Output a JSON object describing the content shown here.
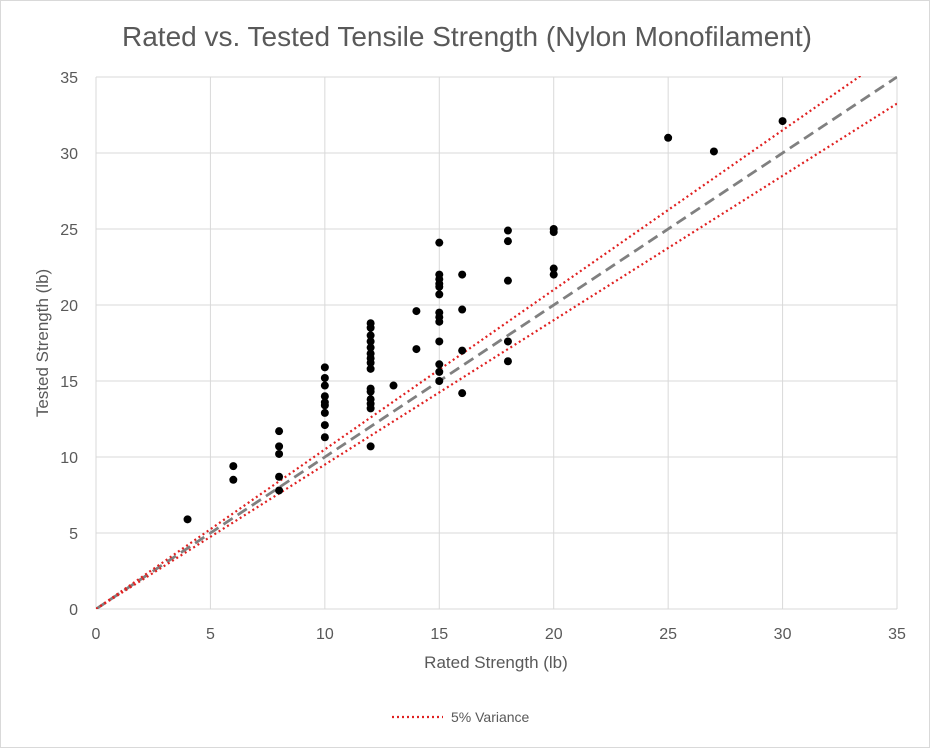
{
  "chart_data": {
    "type": "scatter",
    "title": "Rated vs. Tested Tensile Strength (Nylon Monofilament)",
    "xlabel": "Rated Strength (lb)",
    "ylabel": "Tested Strength (lb)",
    "xlim": [
      0,
      35
    ],
    "ylim": [
      0,
      35
    ],
    "x_ticks": [
      0,
      5,
      10,
      15,
      20,
      25,
      30,
      35
    ],
    "y_ticks": [
      0,
      5,
      10,
      15,
      20,
      25,
      30,
      35
    ],
    "grid": true,
    "legend_position": "bottom",
    "legend": [
      "5% Variance"
    ],
    "colors": {
      "points": "#000000",
      "reference_line": "#808080",
      "variance_lines": "#e02020",
      "grid": "#d9d9d9",
      "text": "#595959"
    },
    "series": [
      {
        "type": "scatter",
        "points": [
          [
            4,
            5.9
          ],
          [
            6,
            9.4
          ],
          [
            6,
            8.5
          ],
          [
            8,
            11.7
          ],
          [
            8,
            10.7
          ],
          [
            8,
            10.2
          ],
          [
            8,
            8.7
          ],
          [
            8,
            7.8
          ],
          [
            10,
            15.9
          ],
          [
            10,
            15.2
          ],
          [
            10,
            14.7
          ],
          [
            10,
            14.0
          ],
          [
            10,
            13.6
          ],
          [
            10,
            13.4
          ],
          [
            10,
            12.9
          ],
          [
            10,
            12.1
          ],
          [
            10,
            11.3
          ],
          [
            12,
            18.8
          ],
          [
            12,
            18.5
          ],
          [
            12,
            18.0
          ],
          [
            12,
            17.6
          ],
          [
            12,
            17.2
          ],
          [
            12,
            16.8
          ],
          [
            12,
            16.5
          ],
          [
            12,
            16.2
          ],
          [
            12,
            15.8
          ],
          [
            12,
            14.5
          ],
          [
            12,
            14.3
          ],
          [
            12,
            13.8
          ],
          [
            12,
            13.5
          ],
          [
            12,
            13.2
          ],
          [
            12,
            10.7
          ],
          [
            13,
            14.7
          ],
          [
            14,
            19.6
          ],
          [
            14,
            17.1
          ],
          [
            15,
            24.1
          ],
          [
            15,
            22.0
          ],
          [
            15,
            21.7
          ],
          [
            15,
            21.4
          ],
          [
            15,
            21.2
          ],
          [
            15,
            20.7
          ],
          [
            15,
            19.5
          ],
          [
            15,
            19.2
          ],
          [
            15,
            18.9
          ],
          [
            15,
            17.6
          ],
          [
            15,
            16.1
          ],
          [
            15,
            15.6
          ],
          [
            15,
            15.0
          ],
          [
            16,
            22.0
          ],
          [
            16,
            19.7
          ],
          [
            16,
            17.0
          ],
          [
            16,
            14.2
          ],
          [
            18,
            24.9
          ],
          [
            18,
            24.2
          ],
          [
            18,
            21.6
          ],
          [
            18,
            17.6
          ],
          [
            18,
            16.3
          ],
          [
            20,
            25.0
          ],
          [
            20,
            24.8
          ],
          [
            20,
            22.4
          ],
          [
            20,
            22.0
          ],
          [
            25,
            31.0
          ],
          [
            27,
            30.1
          ],
          [
            30,
            32.1
          ]
        ]
      },
      {
        "type": "line",
        "style": "dashed",
        "x": [
          0,
          35
        ],
        "y": [
          0,
          35
        ]
      },
      {
        "name": "5% Variance",
        "type": "line",
        "style": "dotted",
        "x": [
          0,
          35
        ],
        "y": [
          0,
          36.75
        ]
      },
      {
        "type": "line",
        "style": "dotted",
        "x": [
          0,
          35
        ],
        "y": [
          0,
          33.25
        ]
      }
    ]
  }
}
